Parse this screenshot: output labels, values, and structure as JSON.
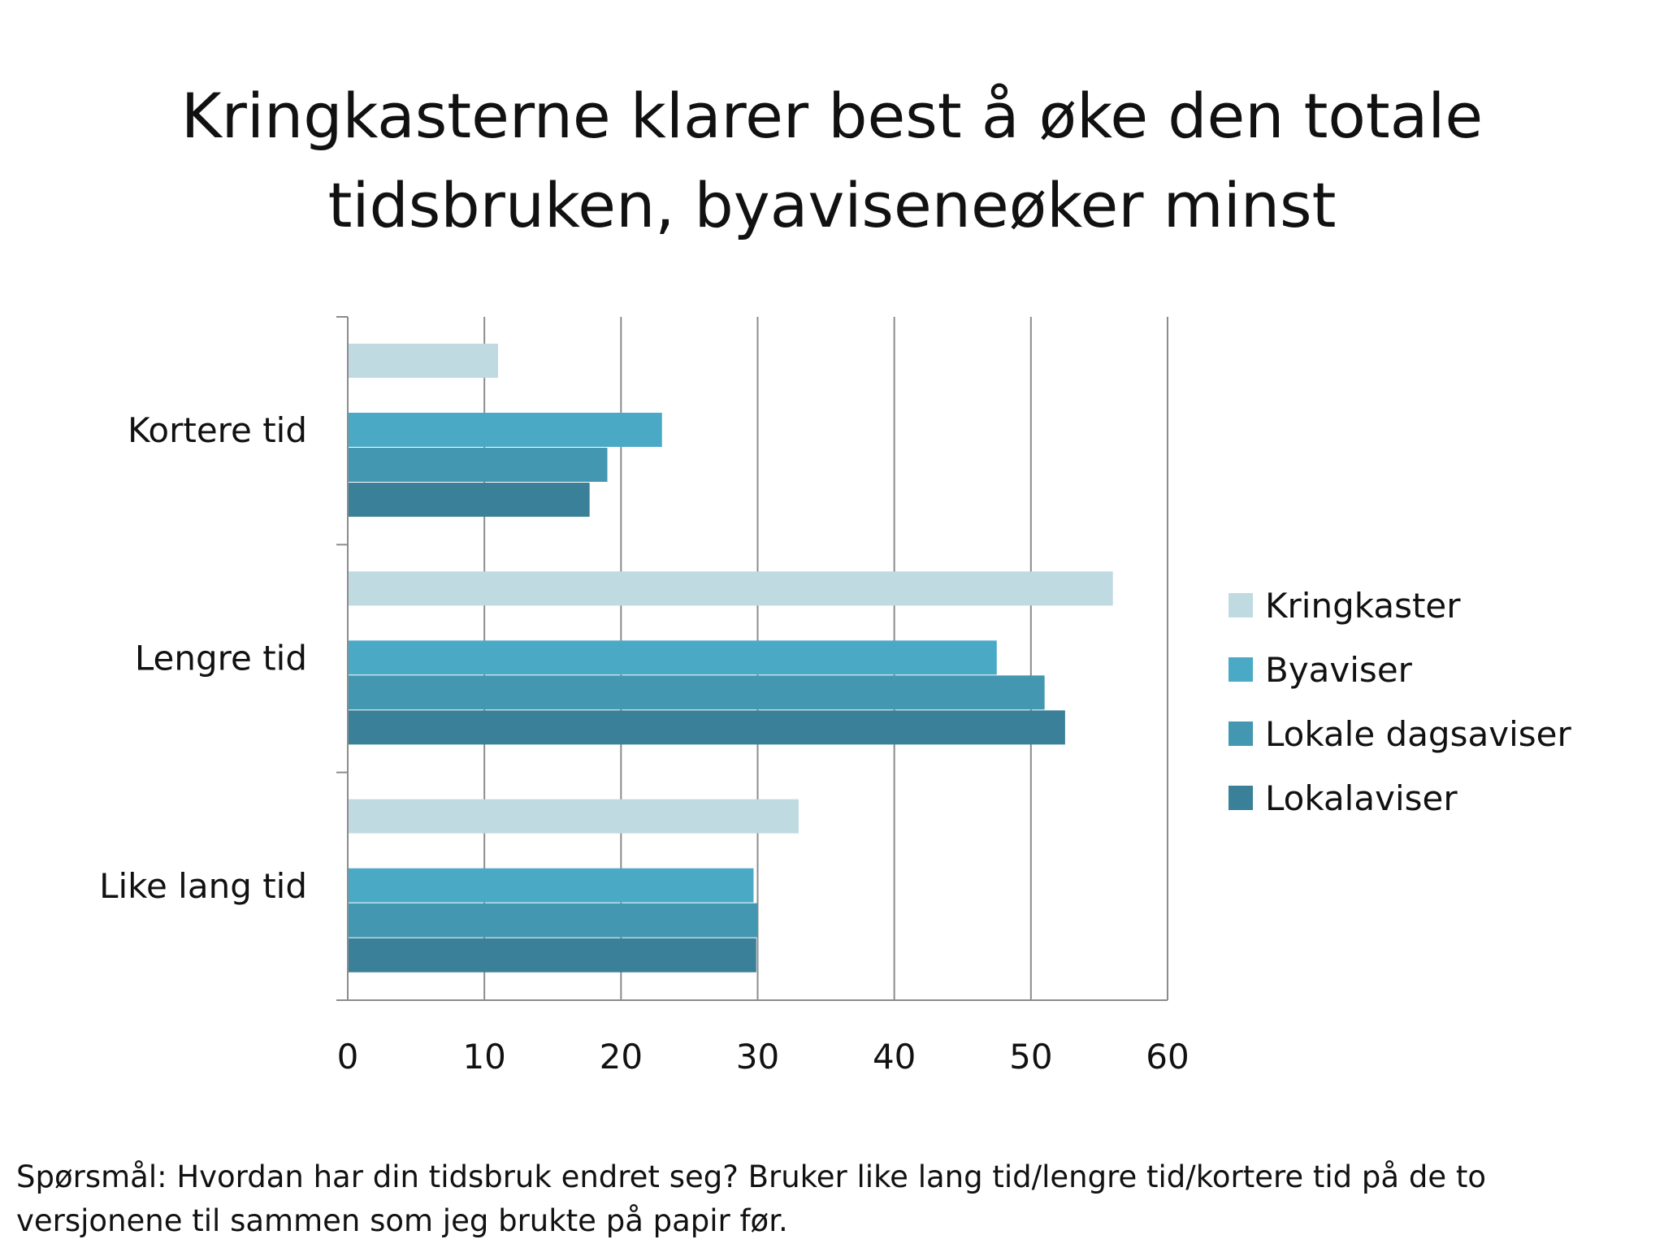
{
  "slide": {
    "title_line1": "Kringkasterne klarer best å øke den totale",
    "title_line2": "tidsbruken, byaviseneøker minst",
    "footnote_line1": "Spørsmål: Hvordan har din tidsbruk endret seg? Bruker like lang tid/lengre tid/kortere tid på de to",
    "footnote_line2": "versjonene til sammen som jeg brukte på papir før."
  },
  "chart_data": {
    "type": "bar",
    "orientation": "horizontal",
    "title": "Kringkasterne klarer best å øke den totale tidsbruken, byaviseneøker minst",
    "categories": [
      "Kortere tid",
      "Lengre tid",
      "Like lang tid"
    ],
    "series": [
      {
        "name": "Kringkaster",
        "color": "#c0dae2",
        "values": [
          11,
          56,
          33
        ]
      },
      {
        "name": "Byaviser",
        "color": "#4aaac6",
        "values": [
          23,
          47.5,
          29.7
        ]
      },
      {
        "name": "Lokale dagsaviser",
        "color": "#4397b0",
        "values": [
          19,
          51,
          30
        ]
      },
      {
        "name": "Lokalaviser",
        "color": "#3a8099",
        "values": [
          17.7,
          52.5,
          29.9
        ]
      }
    ],
    "xlim": [
      0,
      60
    ],
    "xticks": [
      0,
      10,
      20,
      30,
      40,
      50,
      60
    ],
    "grid": "vertical",
    "legend_position": "right"
  }
}
